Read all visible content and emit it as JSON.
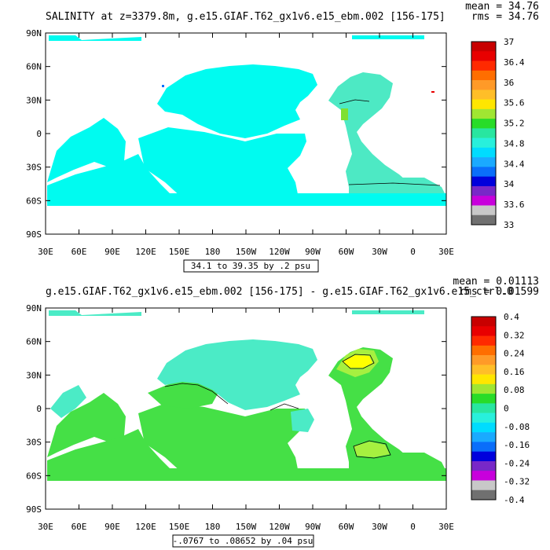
{
  "chart_data": [
    {
      "type": "heatmap",
      "title": "SALINITY at z=3379.8m, g.e15.GIAF.T62_gx1v6.e15_ebm.002 [156-175]",
      "stat_mean": "mean = 34.76",
      "stat_rms": "rms = 34.76",
      "range_label": "34.1 to 39.35 by .2 psu",
      "x_ticks": [
        "30E",
        "60E",
        "90E",
        "120E",
        "150E",
        "180",
        "150W",
        "120W",
        "90W",
        "60W",
        "30W",
        "0",
        "30E"
      ],
      "y_ticks": [
        "90N",
        "60N",
        "30N",
        "0",
        "30S",
        "60S",
        "90S"
      ],
      "ylim": [
        -90,
        90
      ],
      "colorbar": {
        "labels": [
          "37",
          "36.4",
          "36",
          "35.6",
          "35.2",
          "34.8",
          "34.4",
          "34",
          "33.6",
          "33"
        ],
        "colors": [
          "#c80000",
          "#e80000",
          "#ff2a00",
          "#ff6e00",
          "#ff9a28",
          "#ffbe28",
          "#ffe600",
          "#a0e632",
          "#28dc28",
          "#28e6a0",
          "#28f0dc",
          "#00dcff",
          "#1aaaff",
          "#0a6efa",
          "#0000dc",
          "#7828c8",
          "#c800dc",
          "#c8c8c8",
          "#707070"
        ]
      },
      "dominant_values": {
        "atlantic": 34.9,
        "other_oceans": 34.7
      }
    },
    {
      "type": "heatmap",
      "title": "g.e15.GIAF.T62_gx1v6.e15_ebm.002 [156-175] - g.e15.GIAF.T62_gx1v6.e15_ctrl.0",
      "stat_mean": "mean = 0.01113",
      "stat_rms": "rms = 0.01599",
      "range_label": "-.0767 to .08652 by .04 psu",
      "x_ticks": [
        "30E",
        "60E",
        "90E",
        "120E",
        "150E",
        "180",
        "150W",
        "120W",
        "90W",
        "60W",
        "30W",
        "0",
        "30E"
      ],
      "y_ticks": [
        "90N",
        "60N",
        "30N",
        "0",
        "30S",
        "60S",
        "90S"
      ],
      "ylim": [
        -90,
        90
      ],
      "colorbar": {
        "labels": [
          "0.4",
          "0.32",
          "0.24",
          "0.16",
          "0.08",
          "0",
          "-0.08",
          "-0.16",
          "-0.24",
          "-0.32",
          "-0.4"
        ],
        "colors": [
          "#c80000",
          "#e80000",
          "#ff2a00",
          "#ff6e00",
          "#ff9a28",
          "#ffbe28",
          "#ffe600",
          "#a0e632",
          "#28dc28",
          "#28e6a0",
          "#28f0dc",
          "#00dcff",
          "#1aaaff",
          "#0a6efa",
          "#0000dc",
          "#7828c8",
          "#c800dc",
          "#c8c8c8",
          "#707070"
        ]
      },
      "dominant_values": {
        "pacific_north": -0.01,
        "south_indian_atlantic": 0.03,
        "north_atlantic": 0.12
      }
    }
  ],
  "colors": {
    "atlantic_panel1": "#4de9c4",
    "ocean_panel1": "#00fbf0",
    "ocean_panel2_main": "#45e046",
    "ocean_panel2_pacific": "#4bebc6",
    "ocean_panel2_yellow": "#ffff00",
    "ocean_panel2_lime": "#a6f040"
  }
}
